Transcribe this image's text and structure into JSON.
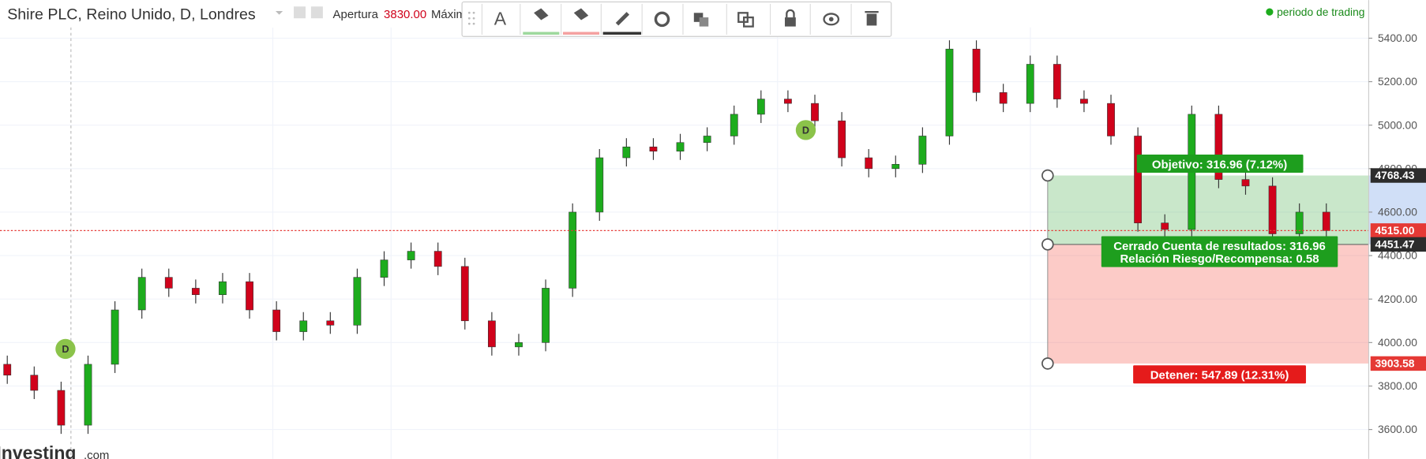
{
  "header": {
    "title": "Shire PLC, Reino Unido, D, Londres",
    "open_label": "Apertura",
    "open_value": "3830.00",
    "high_label": "Máxim",
    "session": "periodo de trading",
    "brand": "Investing",
    "brand_suffix": ".com",
    "toolbar_text": "A",
    "event_marker": "D"
  },
  "chart_data": {
    "type": "candlestick",
    "ylim": [
      3465,
      5575
    ],
    "yticks": [
      {
        "value": 3600,
        "label": "3600.00"
      },
      {
        "value": 3800,
        "label": "3800.00"
      },
      {
        "value": 4000,
        "label": "4000.00"
      },
      {
        "value": 4200,
        "label": "4200.00"
      },
      {
        "value": 4400,
        "label": "4400.00"
      },
      {
        "value": 4600,
        "label": "4600.00"
      },
      {
        "value": 4800,
        "label": "4800.00"
      },
      {
        "value": 5000,
        "label": "5000.00"
      },
      {
        "value": 5200,
        "label": "5200.00"
      },
      {
        "value": 5400,
        "label": "5400.00"
      }
    ],
    "grid": true,
    "up_color": "#1dac1d",
    "down_color": "#d0021b",
    "open": [
      3900,
      3850,
      3780,
      3620,
      3900,
      4150,
      4300,
      4250,
      4220,
      4280,
      4150,
      4050,
      4100,
      4080,
      4300,
      4380,
      4420,
      4350,
      4100,
      3980,
      4000,
      4250,
      4600,
      4850,
      4900,
      4880,
      4920,
      4950,
      5050,
      5120,
      5100,
      5020,
      4850,
      4800,
      4820,
      4950,
      5350,
      5150,
      5100,
      5280,
      5120,
      5100,
      4950,
      4550,
      4520,
      5050,
      4750,
      4720,
      4500,
      4600
    ],
    "high": [
      3940,
      3890,
      3820,
      3940,
      4190,
      4340,
      4340,
      4290,
      4320,
      4320,
      4190,
      4140,
      4140,
      4340,
      4420,
      4460,
      4460,
      4390,
      4140,
      4040,
      4290,
      4640,
      4890,
      4940,
      4940,
      4960,
      4990,
      5090,
      5160,
      5160,
      5140,
      5060,
      4890,
      4860,
      4990,
      5390,
      5390,
      5190,
      5320,
      5320,
      5160,
      5140,
      4990,
      4590,
      5090,
      5090,
      4790,
      4760,
      4640,
      4640
    ],
    "low": [
      3810,
      3740,
      3580,
      3580,
      3860,
      4110,
      4210,
      4180,
      4180,
      4110,
      4010,
      4010,
      4040,
      4040,
      4260,
      4340,
      4310,
      4060,
      3940,
      3940,
      3960,
      4210,
      4560,
      4810,
      4840,
      4840,
      4880,
      4910,
      5010,
      5060,
      4980,
      4810,
      4760,
      4760,
      4780,
      4910,
      5110,
      5060,
      5060,
      5080,
      5060,
      4910,
      4510,
      4480,
      4480,
      4710,
      4680,
      4460,
      4460,
      4470
    ],
    "close": [
      3850,
      3780,
      3620,
      3900,
      4150,
      4300,
      4250,
      4220,
      4280,
      4150,
      4050,
      4100,
      4080,
      4300,
      4380,
      4420,
      4350,
      4100,
      3980,
      4000,
      4250,
      4600,
      4850,
      4900,
      4880,
      4920,
      4950,
      5050,
      5120,
      5100,
      5020,
      4850,
      4800,
      4820,
      4950,
      5350,
      5150,
      5100,
      5280,
      5120,
      5100,
      4950,
      4550,
      4520,
      5050,
      4750,
      4720,
      4500,
      4600,
      4515
    ],
    "current_price": {
      "value": 4515,
      "label": "4515.00"
    },
    "position": {
      "target": {
        "value": 4768.43,
        "label": "4768.43"
      },
      "entry": {
        "value": 4451.47,
        "label": "4451.47"
      },
      "stop": {
        "value": 3903.58,
        "label": "3903.58"
      },
      "target_text": "Objetivo: 316.96 (7.12%)",
      "result_text": "Cerrado Cuenta de resultados: 316.96",
      "ratio_text": "Relación Riesgo/Recompensa: 0.58",
      "stop_text": "Detener: 547.89 (12.31%)"
    }
  }
}
